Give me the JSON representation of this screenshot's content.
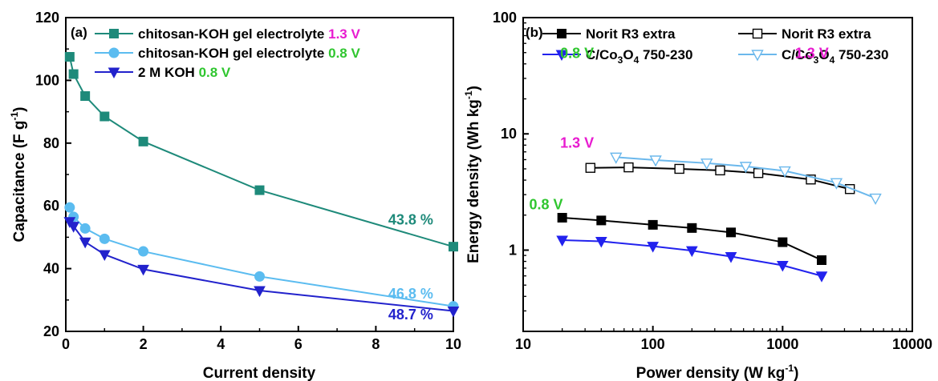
{
  "chart_data": [
    {
      "type": "line",
      "panel_label": "(a)",
      "xlabel": "Current density",
      "ylabel": "Capacitance (F g-1)",
      "ylabel_base": "Capacitance (F g",
      "ylabel_sup": "-1",
      "ylabel_end": ")",
      "xlim": [
        0,
        10
      ],
      "ylim": [
        20,
        120
      ],
      "xticks": [
        0,
        2,
        4,
        6,
        8,
        10
      ],
      "yticks": [
        20,
        40,
        60,
        80,
        100,
        120
      ],
      "legend_placement": "top",
      "series": [
        {
          "name": "chitosan-KOH gel electrolyte 1.3 V",
          "label_base": "chitosan-KOH gel electrolyte",
          "label_voltage": "1.3 V",
          "voltage_color": "#e81cd0",
          "color": "#1e8a7a",
          "marker": "square",
          "x": [
            0.1,
            0.2,
            0.5,
            1,
            2,
            5,
            10
          ],
          "y": [
            107.5,
            102,
            95,
            88.5,
            80.5,
            65,
            47
          ]
        },
        {
          "name": "chitosan-KOH gel electrolyte 0.8 V",
          "label_base": "chitosan-KOH gel electrolyte",
          "label_voltage": "0.8 V",
          "voltage_color": "#2fc62f",
          "color": "#5bbcf0",
          "marker": "circle",
          "x": [
            0.1,
            0.2,
            0.5,
            1,
            2,
            5,
            10
          ],
          "y": [
            59.5,
            56.5,
            52.8,
            49.5,
            45.5,
            37.5,
            28
          ]
        },
        {
          "name": "2 M KOH 0.8 V",
          "label_base": "2 M KOH",
          "label_voltage": "0.8 V",
          "voltage_color": "#2fc62f",
          "color": "#2222cc",
          "marker": "triangle-down",
          "x": [
            0.1,
            0.2,
            0.5,
            1,
            2,
            5,
            10
          ],
          "y": [
            55,
            53.5,
            48.5,
            44.5,
            39.8,
            33,
            26.5
          ]
        }
      ],
      "annotations": [
        {
          "text": "43.8 %",
          "color": "#1e8a7a",
          "x": 8.9,
          "y": 54
        },
        {
          "text": "46.8 %",
          "color": "#5bbcf0",
          "x": 8.9,
          "y": 30.5
        },
        {
          "text": "48.7 %",
          "color": "#2222cc",
          "x": 8.9,
          "y": 23.8
        }
      ]
    },
    {
      "type": "line",
      "panel_label": "(b)",
      "xlabel": "Power density (W kg-1)",
      "xlabel_base": "Power density (W kg",
      "xlabel_sup": "-1",
      "xlabel_end": ")",
      "ylabel": "Energy density (Wh kg-1)",
      "ylabel_base": "Energy density (Wh kg",
      "ylabel_sup": "-1",
      "ylabel_end": ")",
      "x_scale": "log",
      "y_scale": "log",
      "xlim": [
        10,
        10000
      ],
      "ylim": [
        0.2,
        100
      ],
      "xticks": [
        10,
        100,
        1000,
        10000
      ],
      "xtick_labels": [
        "10",
        "100",
        "1000",
        "10000"
      ],
      "yticks": [
        1,
        10,
        100
      ],
      "ytick_labels": [
        "1",
        "10",
        "100"
      ],
      "legend_placement": "top",
      "series": [
        {
          "name": "Norit R3 extra",
          "color": "#000000",
          "marker": "square-filled",
          "x": [
            20,
            40,
            100,
            200,
            400,
            1000,
            2000
          ],
          "y": [
            1.9,
            1.8,
            1.65,
            1.55,
            1.42,
            1.17,
            0.82
          ]
        },
        {
          "name": "C/Co3O4 750-230",
          "name_parts": [
            "C/Co",
            "3",
            "O",
            "4",
            " 750-230"
          ],
          "color": "#2222ee",
          "marker": "triangle-down-filled",
          "x": [
            20,
            40,
            100,
            200,
            400,
            1000,
            2000
          ],
          "y": [
            1.22,
            1.19,
            1.08,
            0.99,
            0.88,
            0.74,
            0.6
          ]
        },
        {
          "name": "Norit R3 extra",
          "color": "#000000",
          "marker": "square-open",
          "x": [
            33,
            65,
            160,
            330,
            650,
            1650,
            3300
          ],
          "y": [
            5.1,
            5.15,
            5.0,
            4.85,
            4.6,
            4.05,
            3.35
          ]
        },
        {
          "name": "C/Co3O4 750-230",
          "name_parts": [
            "C/Co",
            "3",
            "O",
            "4",
            " 750-230"
          ],
          "color": "#6bb8ec",
          "marker": "triangle-down-open",
          "x": [
            52,
            105,
            260,
            520,
            1040,
            2600,
            5200
          ],
          "y": [
            6.3,
            5.95,
            5.6,
            5.25,
            4.8,
            3.8,
            2.8
          ]
        }
      ],
      "annotations": [
        {
          "text": "0.8 V",
          "color": "#2fc62f",
          "x": 15,
          "y": 2.25
        },
        {
          "text": "1.3 V",
          "color": "#e81cd0",
          "x": 26,
          "y": 7.6
        },
        {
          "text": "0.8 V",
          "color": "#2fc62f",
          "x": 26,
          "y": 45
        },
        {
          "text": "1.3 V",
          "color": "#e81cd0",
          "x": 1680,
          "y": 45
        }
      ]
    }
  ]
}
